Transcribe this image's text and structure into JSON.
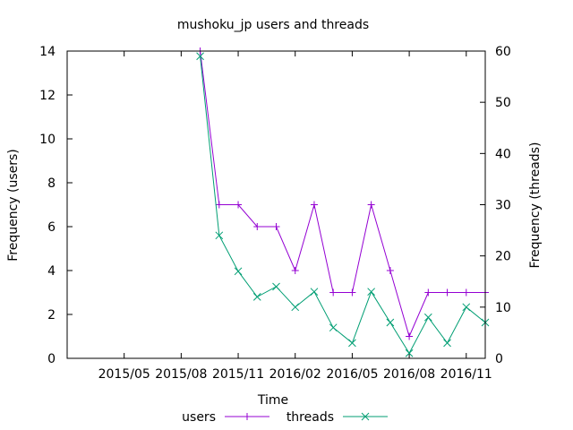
{
  "chart_data": {
    "type": "line",
    "title": "mushoku_jp users and threads",
    "xlabel": "Time",
    "ylabel": "Frequency (users)",
    "y2label": "Frequency (threads)",
    "xlim": [
      "2015-02",
      "2016-12"
    ],
    "ylim": [
      0,
      14
    ],
    "y2lim": [
      0,
      60
    ],
    "grid": false,
    "legend_position": "bottom",
    "x_ticks": [
      "2015/05",
      "2015/08",
      "2015/11",
      "2016/02",
      "2016/05",
      "2016/08",
      "2016/11"
    ],
    "y_ticks": [
      0,
      2,
      4,
      6,
      8,
      10,
      12,
      14
    ],
    "y2_ticks": [
      0,
      10,
      20,
      30,
      40,
      50,
      60
    ],
    "x": [
      "2015-09",
      "2015-10",
      "2015-11",
      "2015-12",
      "2016-01",
      "2016-02",
      "2016-03",
      "2016-04",
      "2016-05",
      "2016-06",
      "2016-07",
      "2016-08",
      "2016-09",
      "2016-10",
      "2016-11",
      "2016-12"
    ],
    "series": [
      {
        "name": "users",
        "axis": "left",
        "color": "#9400d3",
        "marker": "plus",
        "values": [
          14,
          7,
          7,
          6,
          6,
          4,
          7,
          3,
          3,
          7,
          4,
          1,
          3,
          3,
          3,
          3
        ]
      },
      {
        "name": "threads",
        "axis": "right",
        "color": "#009e73",
        "marker": "cross",
        "values": [
          59,
          24,
          17,
          12,
          14,
          10,
          13,
          6,
          3,
          13,
          7,
          1,
          8,
          3,
          10,
          7
        ]
      }
    ]
  }
}
